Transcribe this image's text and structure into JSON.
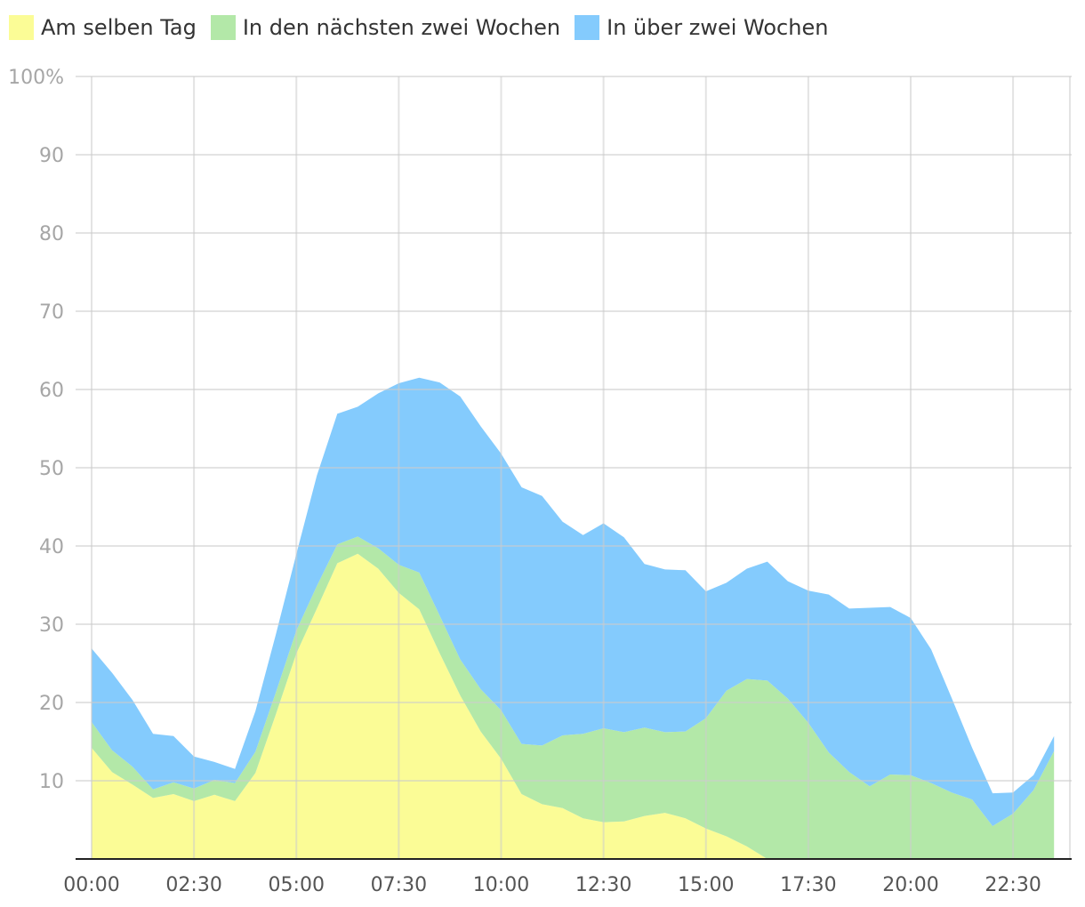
{
  "chart_data": {
    "type": "area",
    "stacked": true,
    "title": "",
    "xlabel": "",
    "ylabel": "",
    "ylim": [
      0,
      100
    ],
    "y_ticks": [
      "10",
      "20",
      "30",
      "40",
      "50",
      "60",
      "70",
      "80",
      "90",
      "100%"
    ],
    "y_tick_values": [
      10,
      20,
      30,
      40,
      50,
      60,
      70,
      80,
      90,
      100
    ],
    "x_ticks": [
      "00:00",
      "02:30",
      "05:00",
      "07:30",
      "10:00",
      "12:30",
      "15:00",
      "17:30",
      "20:00",
      "22:30"
    ],
    "x_tick_hours": [
      0,
      2.5,
      5,
      7.5,
      10,
      12.5,
      15,
      17.5,
      20,
      22.5
    ],
    "grid": true,
    "legend_position": "top-left",
    "x": [
      "00:00",
      "00:30",
      "01:00",
      "01:30",
      "02:00",
      "02:30",
      "03:00",
      "03:30",
      "04:00",
      "04:30",
      "05:00",
      "05:30",
      "06:00",
      "06:30",
      "07:00",
      "07:30",
      "08:00",
      "08:30",
      "09:00",
      "09:30",
      "10:00",
      "10:30",
      "11:00",
      "11:30",
      "12:00",
      "12:30",
      "13:00",
      "13:30",
      "14:00",
      "14:30",
      "15:00",
      "15:30",
      "16:00",
      "16:30",
      "17:00",
      "17:30",
      "18:00",
      "18:30",
      "19:00",
      "19:30",
      "20:00",
      "20:30",
      "21:00",
      "21:30",
      "22:00",
      "22:30",
      "23:00",
      "23:30"
    ],
    "series": [
      {
        "name": "Am selben Tag",
        "color": "#fbfc96",
        "values": [
          14.2,
          11.1,
          9.5,
          7.8,
          8.3,
          7.4,
          8.2,
          7.4,
          11,
          18.5,
          26.3,
          32,
          37.8,
          39,
          37.1,
          34,
          31.9,
          26.3,
          20.9,
          16.3,
          12.8,
          8.3,
          7,
          6.5,
          5.2,
          4.7,
          4.8,
          5.5,
          5.9,
          5.2,
          3.9,
          2.9,
          1.6,
          0,
          0,
          0,
          0,
          0,
          0,
          0,
          0,
          0,
          0,
          0,
          0,
          0,
          0,
          0
        ]
      },
      {
        "name": "In den nächsten zwei Wochen",
        "color": "#b3e8a8",
        "values": [
          3.3,
          2.8,
          2.3,
          1.1,
          1.5,
          1.6,
          1.9,
          2.3,
          2.7,
          2.8,
          2.9,
          2.9,
          2.4,
          2.2,
          2.6,
          3.6,
          4.7,
          4.8,
          4.6,
          5.4,
          6.2,
          6.4,
          7.5,
          9.3,
          10.8,
          12,
          11.4,
          11.3,
          10.3,
          11.1,
          14.1,
          18.6,
          21.4,
          22.8,
          20.5,
          17.4,
          13.6,
          11.1,
          9.3,
          10.8,
          10.7,
          9.7,
          8.5,
          7.6,
          4.2,
          5.8,
          8.8,
          13.8
        ]
      },
      {
        "name": "In über zwei Wochen",
        "color": "#84cbfd",
        "values": [
          9.4,
          9.9,
          8.5,
          7.1,
          5.9,
          4.1,
          2.3,
          1.8,
          5.2,
          7.4,
          9.8,
          14.1,
          16.7,
          16.6,
          19.8,
          23.2,
          24.9,
          29.8,
          33.6,
          33.6,
          32.8,
          32.8,
          31.9,
          27.3,
          25.4,
          26.2,
          24.9,
          20.9,
          20.8,
          20.6,
          16.2,
          13.8,
          14.1,
          15.2,
          15,
          16.9,
          20.2,
          20.9,
          22.8,
          21.4,
          20.1,
          17.1,
          12.1,
          6.6,
          4.2,
          2.7,
          1.9,
          1.9
        ]
      }
    ]
  }
}
